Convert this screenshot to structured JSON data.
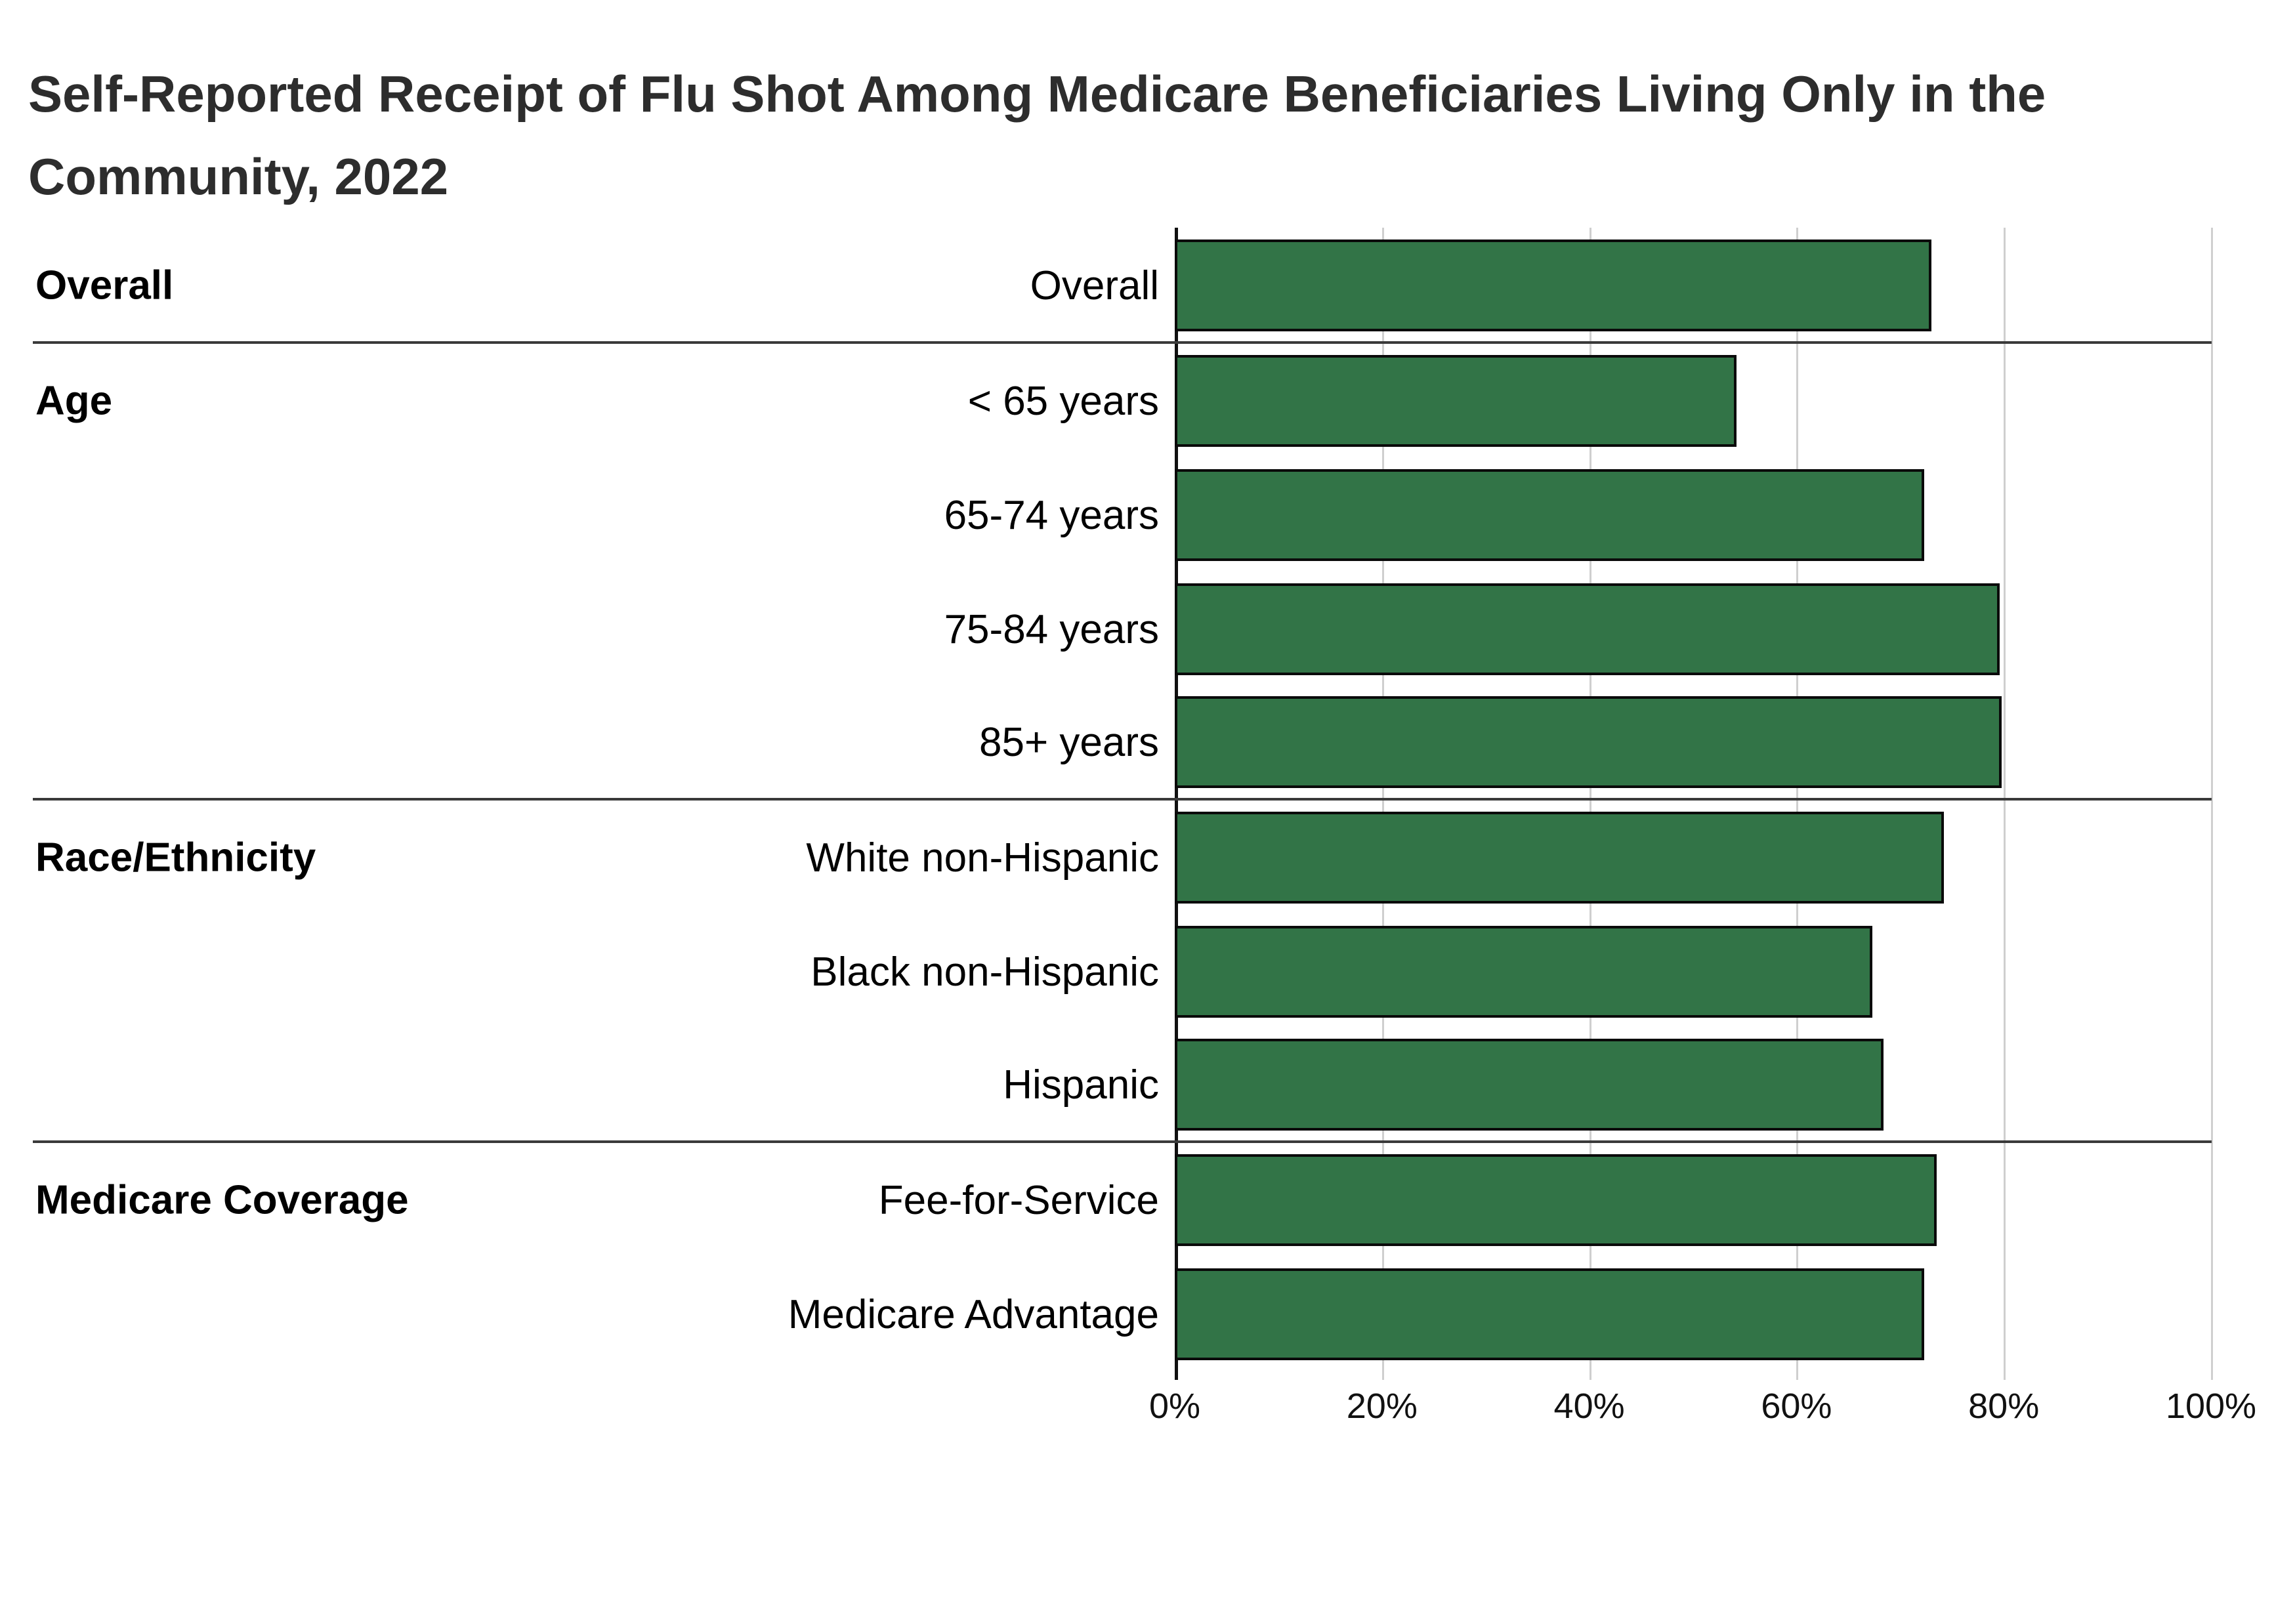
{
  "title": "Self-Reported Receipt of Flu Shot Among Medicare Beneficiaries Living Only in the Community, 2022",
  "title_lines": [
    "Self-Reported Receipt of Flu Shot Among Medicare Beneficiaries Living Only in the",
    "Community, 2022"
  ],
  "chart_data": {
    "type": "bar",
    "orientation": "horizontal",
    "title": "Self-Reported Receipt of Flu Shot Among Medicare Beneficiaries Living Only in the Community, 2022",
    "xlabel": "",
    "ylabel": "",
    "xlim": [
      0,
      100
    ],
    "x_ticks": [
      "0%",
      "20%",
      "40%",
      "60%",
      "80%",
      "100%"
    ],
    "x_tick_values": [
      0,
      20,
      40,
      60,
      80,
      100
    ],
    "grid": "vertical-only",
    "legend": "none",
    "bar_color": "#327447",
    "bar_border_color": "#0a0a0a",
    "gridline_color": "#cfcfcf",
    "axis_color": "#111111",
    "divider_color": "#3a3a3a",
    "groups": [
      {
        "label": "Overall",
        "rows": [
          {
            "label": "Overall",
            "value": 73.0
          }
        ]
      },
      {
        "label": "Age",
        "rows": [
          {
            "label": "< 65 years",
            "value": 54.2
          },
          {
            "label": "65-74 years",
            "value": 72.3
          },
          {
            "label": "75-84 years",
            "value": 79.6
          },
          {
            "label": "85+ years",
            "value": 79.8
          }
        ]
      },
      {
        "label": "Race/Ethnicity",
        "rows": [
          {
            "label": "White non-Hispanic",
            "value": 74.2
          },
          {
            "label": "Black non-Hispanic",
            "value": 67.3
          },
          {
            "label": "Hispanic",
            "value": 68.4
          }
        ]
      },
      {
        "label": "Medicare Coverage",
        "rows": [
          {
            "label": "Fee-for-Service",
            "value": 73.5
          },
          {
            "label": "Medicare Advantage",
            "value": 72.3
          }
        ]
      }
    ]
  }
}
